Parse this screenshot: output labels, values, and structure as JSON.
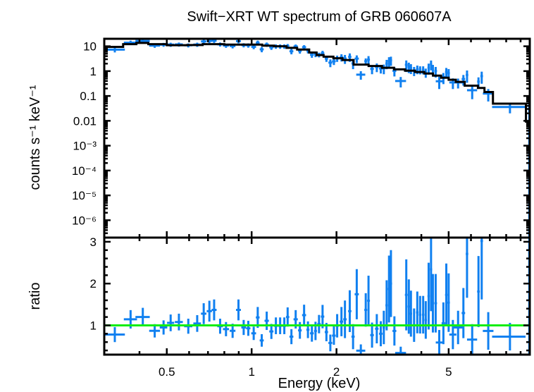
{
  "chart_data": {
    "type": "scatter",
    "title": "Swift−XRT WT spectrum of GRB 060607A",
    "xlabel": "Energy (keV)",
    "xscale": "log",
    "xlim": [
      0.3,
      9.7
    ],
    "xticks_major": [
      0.5,
      1,
      2,
      5
    ],
    "xtick_labels": [
      "0.5",
      "1",
      "2",
      "5"
    ],
    "xticks_minor": [
      0.4,
      0.6,
      0.7,
      0.8,
      0.9,
      3,
      4,
      6,
      7,
      8,
      9
    ],
    "colors": {
      "data": "#1080f0",
      "model": "#000000",
      "unity": "#11ee11"
    },
    "point_fields": [
      "energy_keV",
      "energy_halfwidth_keV",
      "counts",
      "counts_err",
      "ratio",
      "ratio_err"
    ],
    "points": [
      [
        0.327,
        0.028,
        7.33,
        1.69,
        0.78,
        0.18
      ],
      [
        0.372,
        0.02,
        13.97,
        2.68,
        1.145,
        0.22
      ],
      [
        0.411,
        0.024,
        16.32,
        2.99,
        1.2,
        0.22
      ],
      [
        0.453,
        0.02,
        10.61,
        1.95,
        0.87,
        0.16
      ],
      [
        0.487,
        0.015,
        11.59,
        2.07,
        0.95,
        0.17
      ],
      [
        0.516,
        0.015,
        11.66,
        2.2,
        1.06,
        0.2
      ],
      [
        0.552,
        0.018,
        11.88,
        2.2,
        1.08,
        0.2
      ],
      [
        0.596,
        0.02,
        10.98,
        2.02,
        0.98,
        0.18
      ],
      [
        0.641,
        0.02,
        11.7,
        2.24,
        1.045,
        0.2
      ],
      [
        0.676,
        0.015,
        15.62,
        3.05,
        1.28,
        0.25
      ],
      [
        0.708,
        0.015,
        16.35,
        3.05,
        1.34,
        0.25
      ],
      [
        0.736,
        0.015,
        16.71,
        3.05,
        1.37,
        0.25
      ],
      [
        0.773,
        0.018,
        11.96,
        2.2,
        0.98,
        0.18
      ],
      [
        0.811,
        0.02,
        10.65,
        1.99,
        0.91,
        0.17
      ],
      [
        0.856,
        0.02,
        10.18,
        1.99,
        0.87,
        0.17
      ],
      [
        0.898,
        0.018,
        16.03,
        2.93,
        1.37,
        0.25
      ],
      [
        0.937,
        0.018,
        11.12,
        2.11,
        0.95,
        0.18
      ],
      [
        0.973,
        0.017,
        10.88,
        2.11,
        0.93,
        0.18
      ],
      [
        1.017,
        0.02,
        9.48,
        1.87,
        0.81,
        0.16
      ],
      [
        1.051,
        0.016,
        13.92,
        2.93,
        1.19,
        0.25
      ],
      [
        1.086,
        0.018,
        7.49,
        1.76,
        0.64,
        0.15
      ],
      [
        1.131,
        0.02,
        11.77,
        2.33,
        1.11,
        0.22
      ],
      [
        1.175,
        0.02,
        9.06,
        1.91,
        0.855,
        0.18
      ],
      [
        1.219,
        0.02,
        9.9,
        2.0,
        0.99,
        0.2
      ],
      [
        1.262,
        0.02,
        9.9,
        2.0,
        0.99,
        0.2
      ],
      [
        1.306,
        0.02,
        9.9,
        2.0,
        0.99,
        0.2
      ],
      [
        1.342,
        0.018,
        10.32,
        1.98,
        1.2,
        0.23
      ],
      [
        1.384,
        0.022,
        6.28,
        1.55,
        0.73,
        0.18
      ],
      [
        1.433,
        0.025,
        9.85,
        1.89,
        1.145,
        0.22
      ],
      [
        1.483,
        0.022,
        6.51,
        1.48,
        0.88,
        0.2
      ],
      [
        1.535,
        0.025,
        9.21,
        1.85,
        1.245,
        0.25
      ],
      [
        1.584,
        0.02,
        6.62,
        1.48,
        0.895,
        0.2
      ],
      [
        1.636,
        0.025,
        4.54,
        1.12,
        0.81,
        0.2
      ],
      [
        1.685,
        0.02,
        4.86,
        1.23,
        0.867,
        0.22
      ],
      [
        1.734,
        0.025,
        4.53,
        0.97,
        1.03,
        0.22
      ],
      [
        1.785,
        0.025,
        5.32,
        1.23,
        1.21,
        0.28
      ],
      [
        1.842,
        0.025,
        3.19,
        0.84,
        0.84,
        0.22
      ],
      [
        1.902,
        0.03,
        2.2,
        0.76,
        0.58,
        0.2
      ],
      [
        1.958,
        0.03,
        2.49,
        0.73,
        0.755,
        0.22
      ],
      [
        2.011,
        0.025,
        3.27,
        0.92,
        0.99,
        0.28
      ],
      [
        2.083,
        0.03,
        3.6,
        1.16,
        1.09,
        0.35
      ],
      [
        2.143,
        0.03,
        3.21,
        1.26,
        1.145,
        0.45
      ],
      [
        2.229,
        0.03,
        3.75,
        1.4,
        1.34,
        0.5
      ],
      [
        2.29,
        0.03,
        2.04,
        0.84,
        0.73,
        0.3
      ],
      [
        2.36,
        0.04,
        3.19,
        1.1,
        1.745,
        0.6
      ],
      [
        2.44,
        0.09,
        0.72,
        0.27,
        0.395,
        0.15
      ],
      [
        2.54,
        0.03,
        2.51,
        0.73,
        1.37,
        0.4
      ],
      [
        2.598,
        0.03,
        2.91,
        1.1,
        1.59,
        0.6
      ],
      [
        2.674,
        0.04,
        1.23,
        0.48,
        0.767,
        0.3
      ],
      [
        2.78,
        0.04,
        1.47,
        0.56,
        0.92,
        0.35
      ],
      [
        2.872,
        0.04,
        1.28,
        0.48,
        0.8,
        0.3
      ],
      [
        2.944,
        0.03,
        1.29,
        0.54,
        0.95,
        0.4
      ],
      [
        3.013,
        0.03,
        2.01,
        0.82,
        1.48,
        0.6
      ],
      [
        3.072,
        0.03,
        2.54,
        1.09,
        1.87,
        0.8
      ],
      [
        3.12,
        0.03,
        2.72,
        1.09,
        2.0,
        0.8
      ],
      [
        3.21,
        0.05,
        1.02,
        0.41,
        0.867,
        0.35
      ],
      [
        3.38,
        0.15,
        0.4,
        0.18,
        0.34,
        0.15
      ],
      [
        3.537,
        0.04,
        1.8,
        0.88,
        1.73,
        0.85
      ],
      [
        3.611,
        0.035,
        1.51,
        0.68,
        1.45,
        0.65
      ],
      [
        3.674,
        0.035,
        1.33,
        0.57,
        1.28,
        0.55
      ],
      [
        3.77,
        0.04,
        1.05,
        0.42,
        1.005,
        0.4
      ],
      [
        3.87,
        0.04,
        1.21,
        0.46,
        1.31,
        0.5
      ],
      [
        3.96,
        0.04,
        1.15,
        0.41,
        1.255,
        0.45
      ],
      [
        4.06,
        0.04,
        1.15,
        0.41,
        1.255,
        0.45
      ],
      [
        4.147,
        0.04,
        0.9,
        0.36,
        1.13,
        0.45
      ],
      [
        4.246,
        0.04,
        1.36,
        0.64,
        1.7,
        0.8
      ],
      [
        4.33,
        0.04,
        1.87,
        0.8,
        2.34,
        1.0
      ],
      [
        4.396,
        0.04,
        1.22,
        0.56,
        1.53,
        0.7
      ],
      [
        4.497,
        0.05,
        1.01,
        0.46,
        1.53,
        0.7
      ],
      [
        4.63,
        0.13,
        0.39,
        0.2,
        0.59,
        0.3
      ],
      [
        4.79,
        0.07,
        0.57,
        0.27,
        1.05,
        0.5
      ],
      [
        4.905,
        0.05,
        0.93,
        0.41,
        1.73,
        0.75
      ],
      [
        5.0,
        0.05,
        0.83,
        0.38,
        1.545,
        0.7
      ],
      [
        5.176,
        0.15,
        0.35,
        0.16,
        0.78,
        0.35
      ],
      [
        5.4,
        0.2,
        0.35,
        0.15,
        0.95,
        0.4
      ],
      [
        5.64,
        0.08,
        0.48,
        0.22,
        1.295,
        0.6
      ],
      [
        5.81,
        0.06,
        0.7,
        0.36,
        2.71,
        1.05
      ],
      [
        6.06,
        0.25,
        0.17,
        0.096,
        0.66,
        0.37
      ],
      [
        6.38,
        0.07,
        0.38,
        0.18,
        1.81,
        0.85
      ],
      [
        6.55,
        0.07,
        0.63,
        0.32,
        3.02,
        1.4
      ],
      [
        6.91,
        0.3,
        0.125,
        0.065,
        0.867,
        0.45
      ],
      [
        8.25,
        1.12,
        0.036,
        0.016,
        0.73,
        0.33
      ],
      [
        9.66,
        0.08,
        0.026,
        0.03,
        2.73,
        2.9
      ]
    ],
    "model_fields": [
      "energy_lo_keV",
      "energy_hi_keV",
      "counts"
    ],
    "model_steps": [
      [
        0.3,
        0.35,
        9.4
      ],
      [
        0.35,
        0.39,
        12.2
      ],
      [
        0.39,
        0.43,
        13.6
      ],
      [
        0.43,
        0.5,
        12.2
      ],
      [
        0.5,
        0.59,
        11.0
      ],
      [
        0.59,
        0.67,
        11.2
      ],
      [
        0.67,
        0.8,
        12.2
      ],
      [
        0.8,
        1.09,
        11.7
      ],
      [
        1.09,
        1.2,
        10.6
      ],
      [
        1.2,
        1.33,
        10.0
      ],
      [
        1.33,
        1.45,
        8.6
      ],
      [
        1.45,
        1.6,
        7.4
      ],
      [
        1.6,
        1.7,
        5.6
      ],
      [
        1.7,
        1.8,
        4.4
      ],
      [
        1.8,
        1.95,
        3.8
      ],
      [
        1.95,
        2.1,
        3.3
      ],
      [
        2.1,
        2.3,
        2.8
      ],
      [
        2.3,
        2.6,
        1.83
      ],
      [
        2.6,
        2.9,
        1.6
      ],
      [
        2.9,
        3.2,
        1.36
      ],
      [
        3.2,
        3.5,
        1.18
      ],
      [
        3.5,
        3.8,
        1.04
      ],
      [
        3.8,
        4.1,
        0.92
      ],
      [
        4.1,
        4.4,
        0.8
      ],
      [
        4.4,
        4.7,
        0.66
      ],
      [
        4.7,
        5.0,
        0.54
      ],
      [
        5.0,
        5.3,
        0.45
      ],
      [
        5.3,
        5.7,
        0.37
      ],
      [
        5.7,
        6.35,
        0.26
      ],
      [
        6.35,
        6.7,
        0.21
      ],
      [
        6.7,
        7.18,
        0.144
      ],
      [
        7.18,
        9.4,
        0.049
      ],
      [
        9.4,
        9.7,
        0.0093
      ]
    ],
    "panels": [
      {
        "name": "spectrum",
        "ylabel": "counts s⁻¹ keV⁻¹",
        "yscale": "log",
        "ylim": [
          2e-07,
          20
        ],
        "yticks_major": [
          10,
          1,
          0.1,
          0.01,
          0.001,
          0.0001,
          1e-05,
          1e-06
        ],
        "ytick_labels": [
          "10",
          "1",
          "0.1",
          "0.01",
          "10⁻³",
          "10⁻⁴",
          "10⁻⁵",
          "10⁻⁶"
        ],
        "grid": false
      },
      {
        "name": "ratio",
        "ylabel": "ratio",
        "yscale": "linear",
        "ylim": [
          0.3,
          3.1
        ],
        "yticks_major": [
          3,
          2,
          1
        ],
        "ytick_labels": [
          "3",
          "2",
          "1"
        ],
        "yticks_minor": [
          0.4,
          0.6,
          0.8,
          1.2,
          1.4,
          1.6,
          1.8,
          2.2,
          2.4,
          2.6,
          2.8
        ],
        "reference_line": 1,
        "grid": false
      }
    ]
  }
}
